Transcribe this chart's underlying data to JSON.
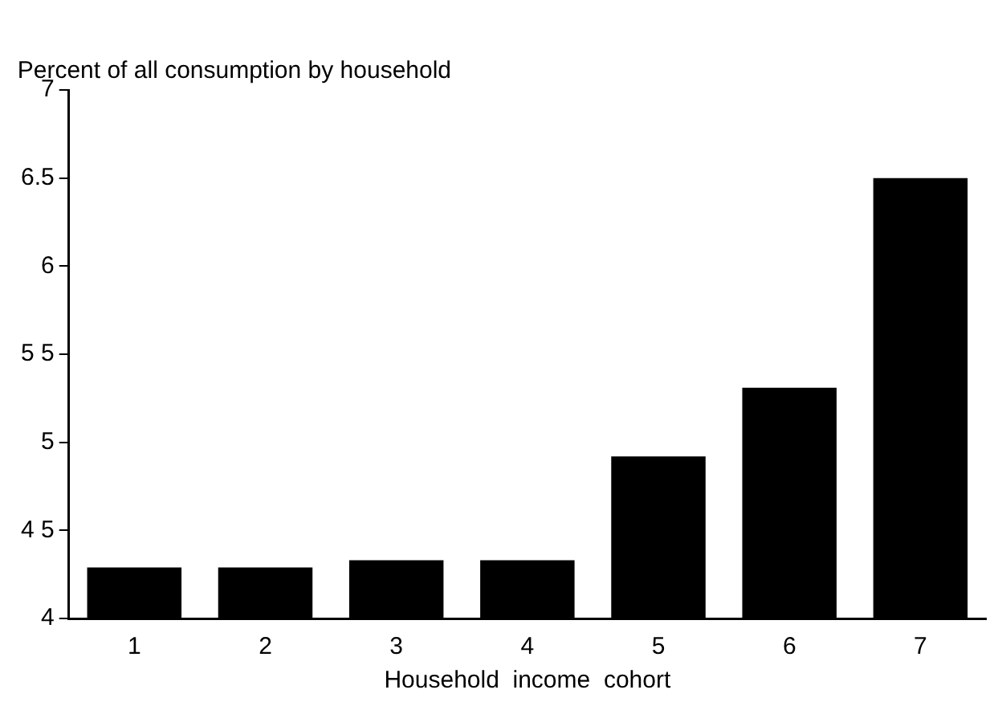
{
  "chart_data": {
    "type": "bar",
    "ylabel": "Percent of all consumption by household",
    "xlabel": "Household  income  cohort",
    "categories": [
      "1",
      "2",
      "3",
      "4",
      "5",
      "6",
      "7"
    ],
    "values": [
      4.29,
      4.29,
      4.33,
      4.33,
      4.92,
      5.31,
      6.5
    ],
    "color": "#000000",
    "ylim": [
      4,
      7
    ],
    "yticks": [
      4,
      {
        "value": 4.5,
        "label": "4 5"
      },
      5,
      {
        "value": 5.5,
        "label": "5 5"
      },
      6,
      6.5,
      7
    ],
    "grid": false,
    "legend": false
  }
}
